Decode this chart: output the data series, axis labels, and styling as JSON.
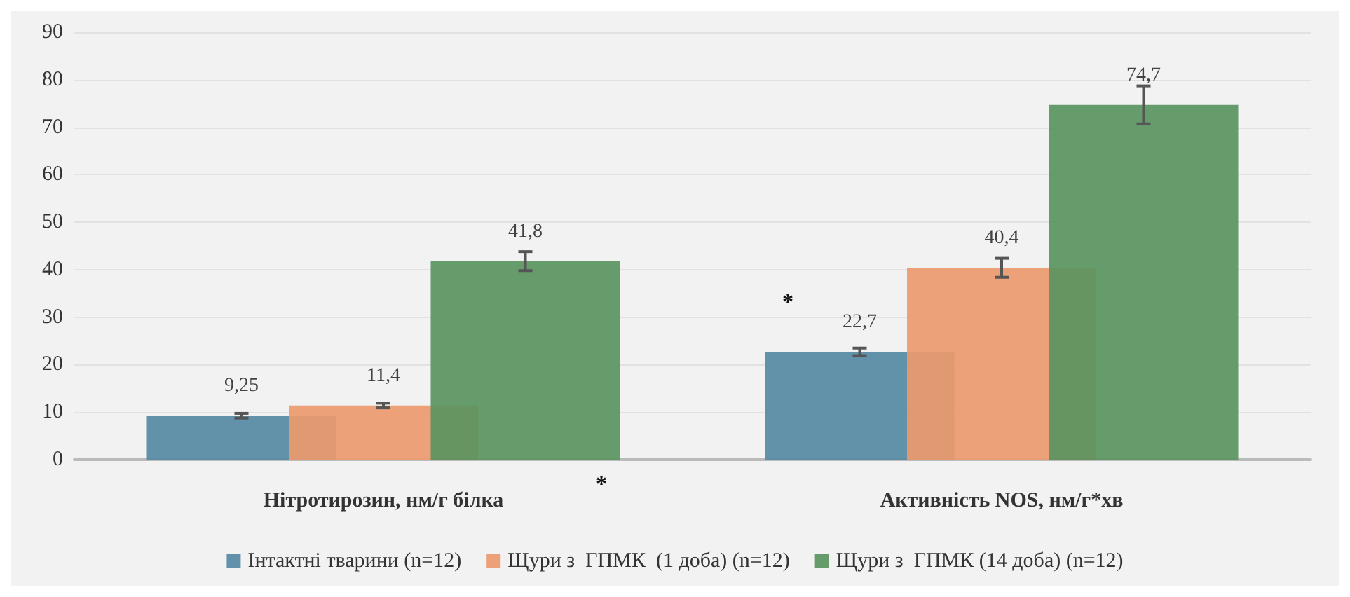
{
  "chart_data": {
    "type": "bar",
    "categories": [
      "Нітротирозин, нм/г білка",
      "Активність NOS, нм/г*хв"
    ],
    "series": [
      {
        "name": "Інтактні тварини (n=12)",
        "color": "#568aa3",
        "values": [
          9.25,
          22.7
        ],
        "errors": [
          0.5,
          0.8
        ],
        "value_labels": [
          "9,25",
          "22,7"
        ]
      },
      {
        "name": "Щури з  ГПМК  (1 доба) (n=12)",
        "color": "#ec9a6e",
        "values": [
          11.4,
          40.4
        ],
        "errors": [
          0.5,
          2
        ],
        "value_labels": [
          "11,4",
          "40,4"
        ]
      },
      {
        "name": "Щури з  ГПМК (14 доба) (n=12)",
        "color": "#5a9460",
        "values": [
          41.8,
          74.7
        ],
        "errors": [
          2,
          4
        ],
        "value_labels": [
          "41,8",
          "74,7"
        ]
      }
    ],
    "ylim": [
      0,
      90
    ],
    "yticks": [
      0,
      10,
      20,
      30,
      40,
      50,
      60,
      70,
      80,
      90
    ],
    "grid": "y",
    "legend": "bottom",
    "annotations": [
      "*",
      "*"
    ]
  }
}
